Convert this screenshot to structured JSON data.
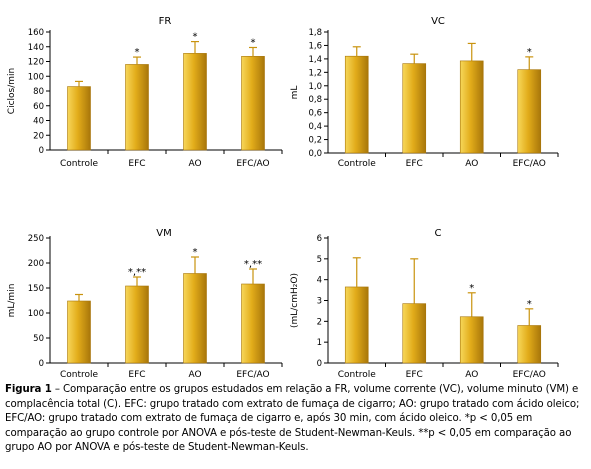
{
  "palette": {
    "bar_light": "#f7d75a",
    "bar_mid": "#e2ac1a",
    "bar_dark": "#a8760a",
    "error": "#c9930e"
  },
  "chart_data": [
    {
      "id": "fr",
      "type": "bar",
      "title": "FR",
      "xlabel": "",
      "ylabel": "Ciclos/min",
      "categories": [
        "Controle",
        "EFC",
        "AO",
        "EFC/AO"
      ],
      "values": [
        86,
        116,
        131,
        127
      ],
      "errors": [
        7,
        10,
        16,
        12
      ],
      "labels": [
        "",
        "*",
        "*",
        "*"
      ],
      "ylim": [
        0,
        160
      ],
      "yticks": [
        0,
        20,
        40,
        60,
        80,
        100,
        120,
        140,
        160
      ],
      "ytick_labels": [
        "0",
        "20",
        "40",
        "60",
        "80",
        "100",
        "120",
        "140",
        "160"
      ],
      "grid": false,
      "legend": "none"
    },
    {
      "id": "vc",
      "type": "bar",
      "title": "VC",
      "xlabel": "",
      "ylabel": "mL",
      "categories": [
        "Controle",
        "EFC",
        "AO",
        "EFC/AO"
      ],
      "values": [
        1.44,
        1.33,
        1.37,
        1.24
      ],
      "errors": [
        0.14,
        0.14,
        0.26,
        0.19
      ],
      "labels": [
        "",
        "",
        "",
        "*"
      ],
      "ylim": [
        0,
        1.8
      ],
      "yticks": [
        0,
        0.2,
        0.4,
        0.6,
        0.8,
        1.0,
        1.2,
        1.4,
        1.6,
        1.8
      ],
      "ytick_labels": [
        "0,0",
        "0,2",
        "0,4",
        "0,6",
        "0,8",
        "1,0",
        "1,2",
        "1,4",
        "1,6",
        "1,8"
      ],
      "grid": false,
      "legend": "none"
    },
    {
      "id": "vm",
      "type": "bar",
      "title": "VM",
      "xlabel": "",
      "ylabel": "mL/min",
      "categories": [
        "Controle",
        "EFC",
        "AO",
        "EFC/AO"
      ],
      "values": [
        124,
        154,
        179,
        158
      ],
      "errors": [
        13,
        18,
        33,
        30
      ],
      "labels": [
        "",
        "*,**",
        "*",
        "*,**"
      ],
      "ylim": [
        0,
        250
      ],
      "yticks": [
        0,
        50,
        100,
        150,
        200,
        250
      ],
      "ytick_labels": [
        "0",
        "50",
        "100",
        "150",
        "200",
        "250"
      ],
      "grid": false,
      "legend": "none"
    },
    {
      "id": "c",
      "type": "bar",
      "title": "C",
      "xlabel": "",
      "ylabel": "(mL/cmH₂O)",
      "categories": [
        "Controle",
        "EFC",
        "AO",
        "EFC/AO"
      ],
      "values": [
        3.65,
        2.85,
        2.22,
        1.8
      ],
      "errors": [
        1.4,
        2.15,
        1.15,
        0.8
      ],
      "labels": [
        "",
        "",
        "*",
        "*"
      ],
      "ylim": [
        0,
        6
      ],
      "yticks": [
        0,
        1,
        2,
        3,
        4,
        5,
        6
      ],
      "ytick_labels": [
        "0",
        "1",
        "2",
        "3",
        "4",
        "5",
        "6"
      ],
      "grid": false,
      "legend": "none"
    }
  ],
  "caption": {
    "label": "Figura 1",
    "text": " – Comparação entre os grupos estudados em relação a FR, volume corrente (VC), volume minuto (VM) e complacência total (C). EFC: grupo tratado com extrato de fumaça de cigarro; AO: grupo tratado com ácido oleico; EFC/AO: grupo tratado com extrato de fumaça de cigarro e, após 30 min, com ácido oleico. *p < 0,05 em comparação ao grupo controle por ANOVA e pós-teste de Student-Newman-Keuls. **p < 0,05 em comparação ao grupo AO por ANOVA e pós-teste de Student-Newman-Keuls."
  }
}
